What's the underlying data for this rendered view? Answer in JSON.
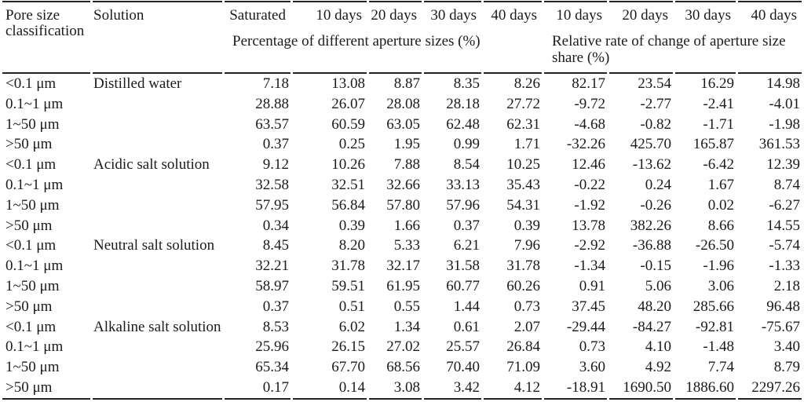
{
  "colors": {
    "text": "#1b1b1b",
    "rule": "#242424",
    "background": "#ffffff"
  },
  "table": {
    "header": {
      "pore_size": "Pore size\nclassification",
      "solution": "Solution",
      "day_labels": [
        "Saturated",
        "10 days",
        "20 days",
        "30 days",
        "40 days",
        "10 days",
        "20 days",
        "30 days",
        "40 days"
      ],
      "group_percentage": "Percentage of different aperture sizes (%)",
      "group_rate": "Relative rate of change of aperture size share (%)"
    },
    "rows": [
      {
        "pore": "<0.1 μm",
        "solution": "Distilled water",
        "cells": [
          "7.18",
          "13.08",
          "8.87",
          "8.35",
          "8.26",
          "82.17",
          "23.54",
          "16.29",
          "14.98"
        ]
      },
      {
        "pore": "0.1~1 μm",
        "solution": "",
        "cells": [
          "28.88",
          "26.07",
          "28.08",
          "28.18",
          "27.72",
          "-9.72",
          "-2.77",
          "-2.41",
          "-4.01"
        ]
      },
      {
        "pore": "1~50 μm",
        "solution": "",
        "cells": [
          "63.57",
          "60.59",
          "63.05",
          "62.48",
          "62.31",
          "-4.68",
          "-0.82",
          "-1.71",
          "-1.98"
        ]
      },
      {
        "pore": ">50 μm",
        "solution": "",
        "cells": [
          "0.37",
          "0.25",
          "1.95",
          "0.99",
          "1.71",
          "-32.26",
          "425.70",
          "165.87",
          "361.53"
        ]
      },
      {
        "pore": "<0.1 μm",
        "solution": "Acidic salt solution",
        "cells": [
          "9.12",
          "10.26",
          "7.88",
          "8.54",
          "10.25",
          "12.46",
          "-13.62",
          "-6.42",
          "12.39"
        ]
      },
      {
        "pore": "0.1~1 μm",
        "solution": "",
        "cells": [
          "32.58",
          "32.51",
          "32.66",
          "33.13",
          "35.43",
          "-0.22",
          "0.24",
          "1.67",
          "8.74"
        ]
      },
      {
        "pore": "1~50 μm",
        "solution": "",
        "cells": [
          "57.95",
          "56.84",
          "57.80",
          "57.96",
          "54.31",
          "-1.92",
          "-0.26",
          "0.02",
          "-6.27"
        ]
      },
      {
        "pore": ">50 μm",
        "solution": "",
        "cells": [
          "0.34",
          "0.39",
          "1.66",
          "0.37",
          "0.39",
          "13.78",
          "382.26",
          "8.66",
          "14.55"
        ]
      },
      {
        "pore": "<0.1 μm",
        "solution": "Neutral salt solution",
        "cells": [
          "8.45",
          "8.20",
          "5.33",
          "6.21",
          "7.96",
          "-2.92",
          "-36.88",
          "-26.50",
          "-5.74"
        ]
      },
      {
        "pore": "0.1~1 μm",
        "solution": "",
        "cells": [
          "32.21",
          "31.78",
          "32.17",
          "31.58",
          "31.78",
          "-1.34",
          "-0.15",
          "-1.96",
          "-1.33"
        ]
      },
      {
        "pore": "1~50 μm",
        "solution": "",
        "cells": [
          "58.97",
          "59.51",
          "61.95",
          "60.77",
          "60.26",
          "0.91",
          "5.06",
          "3.06",
          "2.18"
        ]
      },
      {
        "pore": ">50 μm",
        "solution": "",
        "cells": [
          "0.37",
          "0.51",
          "0.55",
          "1.44",
          "0.73",
          "37.45",
          "48.20",
          "285.66",
          "96.48"
        ]
      },
      {
        "pore": "<0.1 μm",
        "solution": "Alkaline salt solution",
        "cells": [
          "8.53",
          "6.02",
          "1.34",
          "0.61",
          "2.07",
          "-29.44",
          "-84.27",
          "-92.81",
          "-75.67"
        ]
      },
      {
        "pore": "0.1~1 μm",
        "solution": "",
        "cells": [
          "25.96",
          "26.15",
          "27.02",
          "25.57",
          "26.84",
          "0.73",
          "4.10",
          "-1.48",
          "3.40"
        ]
      },
      {
        "pore": "1~50 μm",
        "solution": "",
        "cells": [
          "65.34",
          "67.70",
          "68.56",
          "70.40",
          "71.09",
          "3.60",
          "4.92",
          "7.74",
          "8.79"
        ]
      },
      {
        "pore": ">50 μm",
        "solution": "",
        "cells": [
          "0.17",
          "0.14",
          "3.08",
          "3.42",
          "4.12",
          "-18.91",
          "1690.50",
          "1886.60",
          "2297.26"
        ]
      }
    ]
  }
}
